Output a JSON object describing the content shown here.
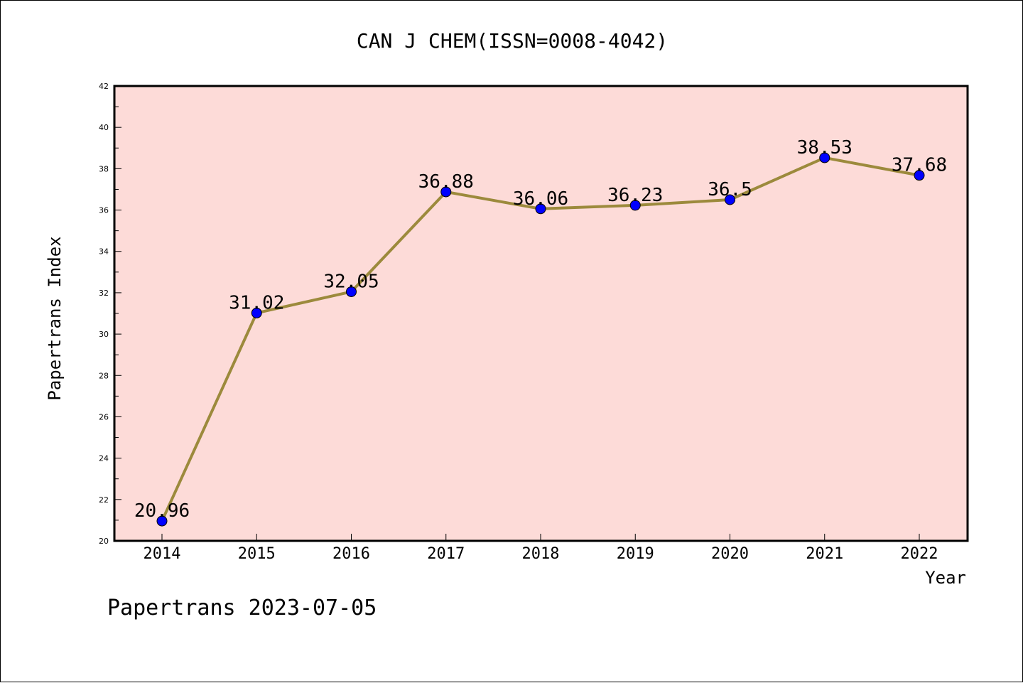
{
  "chart_data": {
    "type": "line",
    "title": "CAN J CHEM(ISSN=0008-4042)",
    "xlabel": "Year",
    "ylabel": "Papertrans Index",
    "categories": [
      "2014",
      "2015",
      "2016",
      "2017",
      "2018",
      "2019",
      "2020",
      "2021",
      "2022"
    ],
    "values": [
      20.96,
      31.02,
      32.05,
      36.88,
      36.06,
      36.23,
      36.5,
      38.53,
      37.68
    ],
    "data_labels": [
      "20.96",
      "31.02",
      "32.05",
      "36.88",
      "36.06",
      "36.23",
      "36.5",
      "38.53",
      "37.68"
    ],
    "ylim": [
      20,
      42
    ],
    "yticks": [
      "20",
      "22",
      "24",
      "26",
      "28",
      "30",
      "32",
      "34",
      "36",
      "38",
      "40",
      "42"
    ],
    "grid": false,
    "colors": {
      "plot_background": "#fddbd8",
      "line": "#9c8a3c",
      "marker": "#0000ff"
    }
  },
  "footer": {
    "caption": "Papertrans 2023-07-05"
  }
}
